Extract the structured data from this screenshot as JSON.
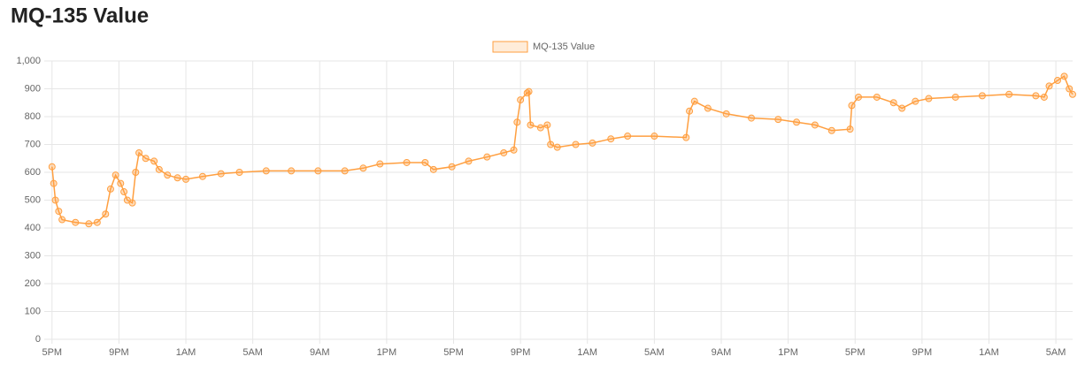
{
  "chart_data": {
    "type": "line",
    "title": "MQ-135 Value",
    "x": [
      0,
      0.1,
      0.2,
      0.4,
      0.6,
      1.4,
      2.2,
      2.7,
      3.2,
      3.5,
      3.8,
      4.1,
      4.3,
      4.5,
      4.8,
      5.0,
      5.2,
      5.6,
      6.1,
      6.4,
      6.9,
      7.5,
      8.0,
      9.0,
      10.1,
      11.2,
      12.8,
      14.3,
      15.9,
      17.5,
      18.6,
      19.6,
      21.2,
      22.3,
      22.8,
      23.9,
      24.9,
      26.0,
      27.0,
      27.6,
      27.8,
      28.0,
      28.4,
      28.5,
      28.6,
      29.2,
      29.6,
      29.8,
      30.2,
      31.3,
      32.3,
      33.4,
      34.4,
      36.0,
      37.9,
      38.1,
      38.4,
      39.2,
      40.3,
      41.8,
      43.4,
      44.5,
      45.6,
      46.6,
      47.7,
      47.8,
      48.2,
      49.3,
      50.3,
      50.8,
      51.6,
      52.4,
      54.0,
      55.6,
      57.2,
      58.8,
      59.3,
      59.6,
      60.1,
      60.5,
      60.8,
      61.0
    ],
    "series": [
      {
        "name": "MQ-135 Value",
        "color": "#ff9f40",
        "values": [
          620,
          560,
          500,
          460,
          430,
          420,
          415,
          420,
          450,
          540,
          590,
          560,
          530,
          500,
          490,
          600,
          670,
          650,
          640,
          610,
          590,
          580,
          575,
          585,
          595,
          600,
          605,
          605,
          605,
          605,
          615,
          630,
          635,
          635,
          610,
          620,
          640,
          655,
          670,
          680,
          780,
          860,
          885,
          890,
          770,
          760,
          770,
          700,
          690,
          700,
          705,
          720,
          730,
          730,
          725,
          820,
          855,
          830,
          810,
          795,
          790,
          780,
          770,
          750,
          755,
          840,
          870,
          870,
          850,
          830,
          855,
          865,
          870,
          875,
          880,
          875,
          870,
          910,
          930,
          945,
          900,
          880
        ]
      }
    ],
    "xlim": [
      -0.2,
      61.0
    ],
    "xticks": [
      {
        "value": 0,
        "label": "5PM"
      },
      {
        "value": 4,
        "label": "9PM"
      },
      {
        "value": 8,
        "label": "1AM"
      },
      {
        "value": 12,
        "label": "5AM"
      },
      {
        "value": 16,
        "label": "9AM"
      },
      {
        "value": 20,
        "label": "1PM"
      },
      {
        "value": 24,
        "label": "5PM"
      },
      {
        "value": 28,
        "label": "9PM"
      },
      {
        "value": 32,
        "label": "1AM"
      },
      {
        "value": 36,
        "label": "5AM"
      },
      {
        "value": 40,
        "label": "9AM"
      },
      {
        "value": 44,
        "label": "1PM"
      },
      {
        "value": 48,
        "label": "5PM"
      },
      {
        "value": 52,
        "label": "9PM"
      },
      {
        "value": 56,
        "label": "1AM"
      },
      {
        "value": 60,
        "label": "5AM"
      }
    ],
    "ylim": [
      0,
      1000
    ],
    "yticks": [
      0,
      100,
      200,
      300,
      400,
      500,
      600,
      700,
      800,
      900,
      {
        "value": 1000,
        "label": "1,000"
      }
    ],
    "grid": true
  }
}
